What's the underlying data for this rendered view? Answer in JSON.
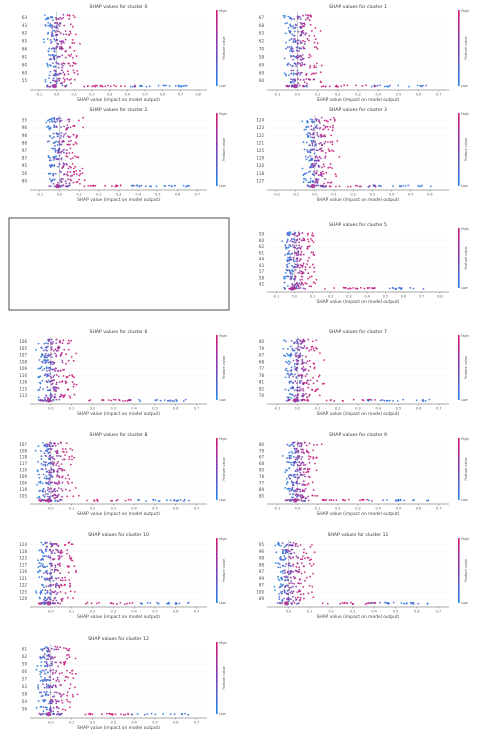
{
  "chart_data": [
    {
      "type": "scatter",
      "title": "SHAP values for cluster 0",
      "xlabel": "SHAP value (impact on model output)",
      "xlim": [
        -0.15,
        0.85
      ],
      "xticks": [
        "-0.1",
        "0.0",
        "0.1",
        "0.2",
        "0.3",
        "0.4",
        "0.5",
        "0.6",
        "0.7",
        "0.8"
      ],
      "features": [
        "63",
        "43",
        "62",
        "65",
        "66",
        "61",
        "60",
        "60",
        "55"
      ],
      "colorbar": {
        "label": "Feature value",
        "high": "High",
        "low": "Low"
      }
    },
    {
      "type": "scatter",
      "title": "SHAP values for cluster 1",
      "xlabel": "SHAP value (impact on model output)",
      "xlim": [
        -0.15,
        0.75
      ],
      "xticks": [
        "-0.1",
        "0.0",
        "0.1",
        "0.2",
        "0.3",
        "0.4",
        "0.5",
        "0.6",
        "0.7"
      ],
      "features": [
        "67",
        "68",
        "63",
        "62",
        "70",
        "58",
        "69",
        "69",
        "60"
      ],
      "colorbar": {
        "label": "Feature value",
        "high": "High",
        "low": "Low"
      }
    },
    {
      "type": "scatter",
      "title": "SHAP values for cluster 2",
      "xlabel": "SHAP value (impact on model output)",
      "xlim": [
        -0.15,
        0.75
      ],
      "xticks": [
        "-0.1",
        "0.0",
        "0.1",
        "0.2",
        "0.3",
        "0.4",
        "0.5",
        "0.6",
        "0.7"
      ],
      "features": [
        "55",
        "96",
        "98",
        "88",
        "97",
        "87",
        "95",
        "56",
        "80"
      ],
      "colorbar": {
        "label": "Feature value",
        "high": "High",
        "low": "Low"
      }
    },
    {
      "type": "scatter",
      "title": "SHAP values for cluster 3",
      "xlabel": "SHAP value (impact on model output)",
      "xlim": [
        -0.25,
        0.7
      ],
      "xticks": [
        "-0.2",
        "-0.1",
        "0.0",
        "0.1",
        "0.2",
        "0.3",
        "0.4",
        "0.5",
        "0.6"
      ],
      "features": [
        "124",
        "123",
        "122",
        "121",
        "125",
        "119",
        "120",
        "118",
        "117"
      ],
      "colorbar": {
        "label": "Feature value",
        "high": "High",
        "low": "Low"
      }
    },
    {
      "type": "scatter",
      "title": "SHAP values for cluster 5",
      "xlabel": "SHAP value (impact on model output)",
      "xlim": [
        -0.15,
        0.85
      ],
      "xticks": [
        "-0.1",
        "0.0",
        "0.1",
        "0.2",
        "0.3",
        "0.4",
        "0.5",
        "0.6",
        "0.7",
        "0.8"
      ],
      "features": [
        "59",
        "60",
        "62",
        "61",
        "44",
        "43",
        "57",
        "58",
        "42"
      ],
      "colorbar": {
        "label": "Feature value",
        "high": "High",
        "low": "Low"
      }
    },
    {
      "type": "scatter",
      "title": "SHAP values for cluster 6",
      "xlabel": "SHAP value (impact on model output)",
      "xlim": [
        -0.1,
        0.75
      ],
      "xticks": [
        "0.0",
        "0.1",
        "0.2",
        "0.3",
        "0.4",
        "0.5",
        "0.6",
        "0.7"
      ],
      "features": [
        "106",
        "105",
        "107",
        "108",
        "109",
        "110",
        "116",
        "115",
        "113"
      ],
      "colorbar": {
        "label": "Feature value",
        "high": "High",
        "low": "Low"
      }
    },
    {
      "type": "scatter",
      "title": "SHAP values for cluster 7",
      "xlabel": "SHAP value (impact on model output)",
      "xlim": [
        -0.15,
        0.75
      ],
      "xticks": [
        "-0.1",
        "0.0",
        "0.1",
        "0.2",
        "0.3",
        "0.4",
        "0.5",
        "0.6",
        "0.7"
      ],
      "features": [
        "80",
        "79",
        "67",
        "68",
        "77",
        "78",
        "81",
        "82",
        "70"
      ],
      "colorbar": {
        "label": "Feature value",
        "high": "High",
        "low": "Low"
      }
    },
    {
      "type": "scatter",
      "title": "SHAP values for cluster 8",
      "xlabel": "SHAP value (impact on model output)",
      "xlim": [
        -0.1,
        0.75
      ],
      "xticks": [
        "0.0",
        "0.1",
        "0.2",
        "0.3",
        "0.4",
        "0.5",
        "0.6",
        "0.7"
      ],
      "features": [
        "107",
        "108",
        "118",
        "117",
        "110",
        "109",
        "106",
        "119",
        "105"
      ],
      "colorbar": {
        "label": "Feature value",
        "high": "High",
        "low": "Low"
      }
    },
    {
      "type": "scatter",
      "title": "SHAP values for cluster 9",
      "xlabel": "SHAP value (impact on model output)",
      "xlim": [
        -0.15,
        0.75
      ],
      "xticks": [
        "-0.1",
        "0.0",
        "0.1",
        "0.2",
        "0.3",
        "0.4",
        "0.5",
        "0.6",
        "0.7"
      ],
      "features": [
        "80",
        "79",
        "67",
        "68",
        "90",
        "78",
        "77",
        "89",
        "85"
      ],
      "colorbar": {
        "label": "Feature value",
        "high": "High",
        "low": "Low"
      }
    },
    {
      "type": "scatter",
      "title": "SHAP values for cluster 10",
      "xlabel": "SHAP value (impact on model output)",
      "xlim": [
        -0.1,
        0.75
      ],
      "xticks": [
        "0.0",
        "0.1",
        "0.2",
        "0.3",
        "0.4",
        "0.5",
        "0.6",
        "0.7"
      ],
      "features": [
        "124",
        "118",
        "123",
        "117",
        "116",
        "121",
        "122",
        "125",
        "120"
      ],
      "colorbar": {
        "label": "Feature value",
        "high": "High",
        "low": "Low"
      }
    },
    {
      "type": "scatter",
      "title": "SHAP values for cluster 11",
      "xlabel": "SHAP value (impact on model output)",
      "xlim": [
        -0.1,
        0.75
      ],
      "xticks": [
        "0.0",
        "0.1",
        "0.2",
        "0.3",
        "0.4",
        "0.5",
        "0.6",
        "0.7"
      ],
      "features": [
        "95",
        "96",
        "98",
        "88",
        "97",
        "99",
        "87",
        "100",
        "89"
      ],
      "colorbar": {
        "label": "Feature value",
        "high": "High",
        "low": "Low"
      }
    },
    {
      "type": "scatter",
      "title": "SHAP values for cluster 12",
      "xlabel": "SHAP value (impact on model output)",
      "xlim": [
        -0.1,
        0.75
      ],
      "xticks": [
        "0.0",
        "0.1",
        "0.2",
        "0.3",
        "0.4",
        "0.5",
        "0.6",
        "0.7"
      ],
      "features": [
        "61",
        "62",
        "59",
        "60",
        "57",
        "63",
        "58",
        "64",
        "56"
      ],
      "colorbar": {
        "label": "Feature value",
        "high": "High",
        "low": "Low"
      }
    }
  ],
  "colors": {
    "high": "#d6146f",
    "low": "#1e88e5",
    "axis": "#555555",
    "zero_line": "#999999"
  }
}
